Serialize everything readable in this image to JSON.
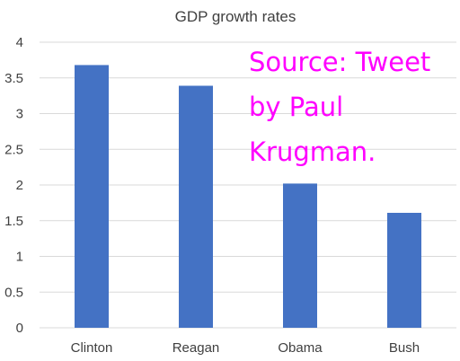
{
  "chart_data": {
    "type": "bar",
    "title": "GDP growth rates",
    "xlabel": "",
    "ylabel": "",
    "categories": [
      "Clinton",
      "Reagan",
      "Obama",
      "Bush"
    ],
    "values": [
      3.68,
      3.39,
      2.02,
      1.61
    ],
    "ylim": [
      0,
      4
    ],
    "yticks": [
      "0",
      "0.5",
      "1",
      "1.5",
      "2",
      "2.5",
      "3",
      "3.5",
      "4"
    ],
    "grid": true,
    "bar_color": "#4472C4",
    "gridline_color": "#D9D9D9"
  },
  "annotation": {
    "lines": [
      "Source: Tweet",
      "by Paul",
      "Krugman."
    ],
    "color": "#FF00FF"
  }
}
